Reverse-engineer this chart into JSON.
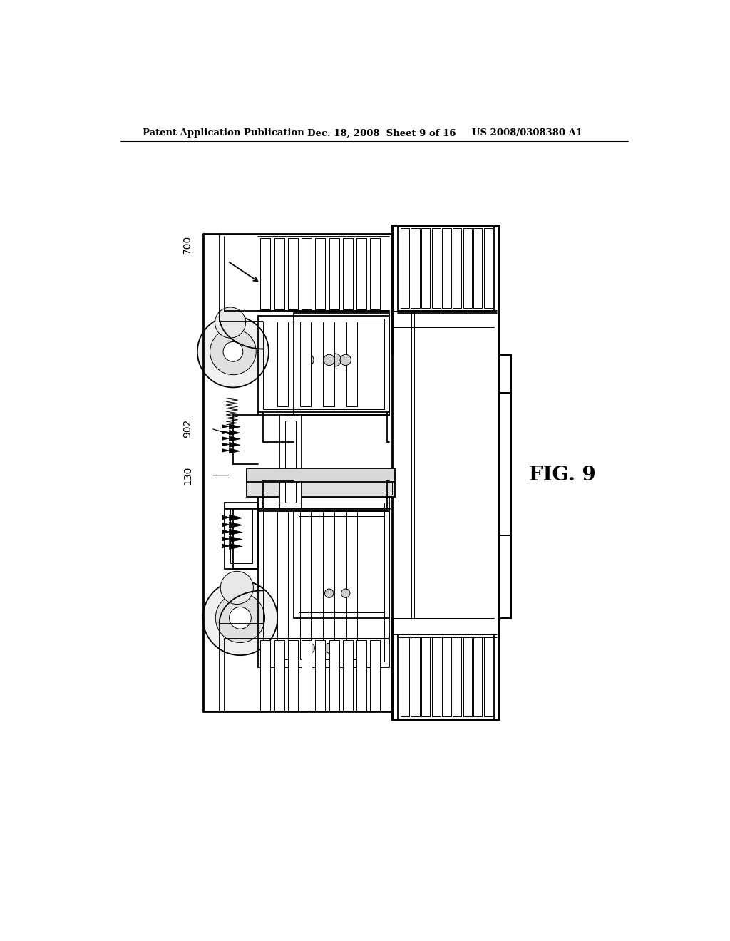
{
  "bg_color": "#ffffff",
  "line_color": "#000000",
  "header_left": "Patent Application Publication",
  "header_mid": "Dec. 18, 2008  Sheet 9 of 16",
  "header_right": "US 2008/0308380 A1",
  "fig_label": "FIG. 9",
  "ref_700": "700",
  "ref_902": "902",
  "ref_130": "130"
}
